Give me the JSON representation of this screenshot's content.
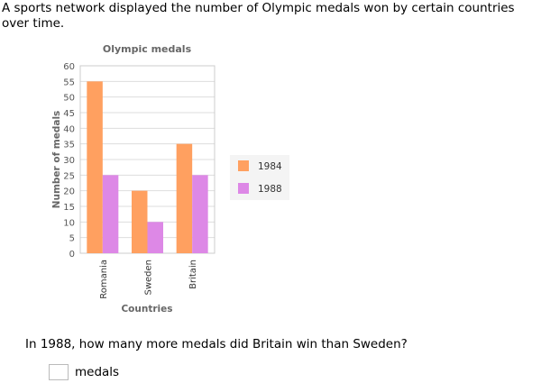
{
  "intro": "A sports network displayed the number of Olympic medals won by certain countries over time.",
  "question": "In 1988, how many more medals did Britain win than Sweden?",
  "answer": {
    "value": "",
    "unit": "medals"
  },
  "chart_data": {
    "type": "bar",
    "title": "Olympic medals",
    "xlabel": "Countries",
    "ylabel": "Number of medals",
    "categories": [
      "Romania",
      "Sweden",
      "Britain"
    ],
    "series": [
      {
        "name": "1984",
        "values": [
          55,
          20,
          35
        ],
        "color": "#ffa060"
      },
      {
        "name": "1988",
        "values": [
          25,
          10,
          25
        ],
        "color": "#dd88e6"
      }
    ],
    "ylim": [
      0,
      60
    ],
    "yticks": [
      "0",
      "5",
      "10",
      "15",
      "20",
      "25",
      "30",
      "35",
      "40",
      "45",
      "50",
      "55",
      "60"
    ],
    "grid": true,
    "legend": "right"
  }
}
